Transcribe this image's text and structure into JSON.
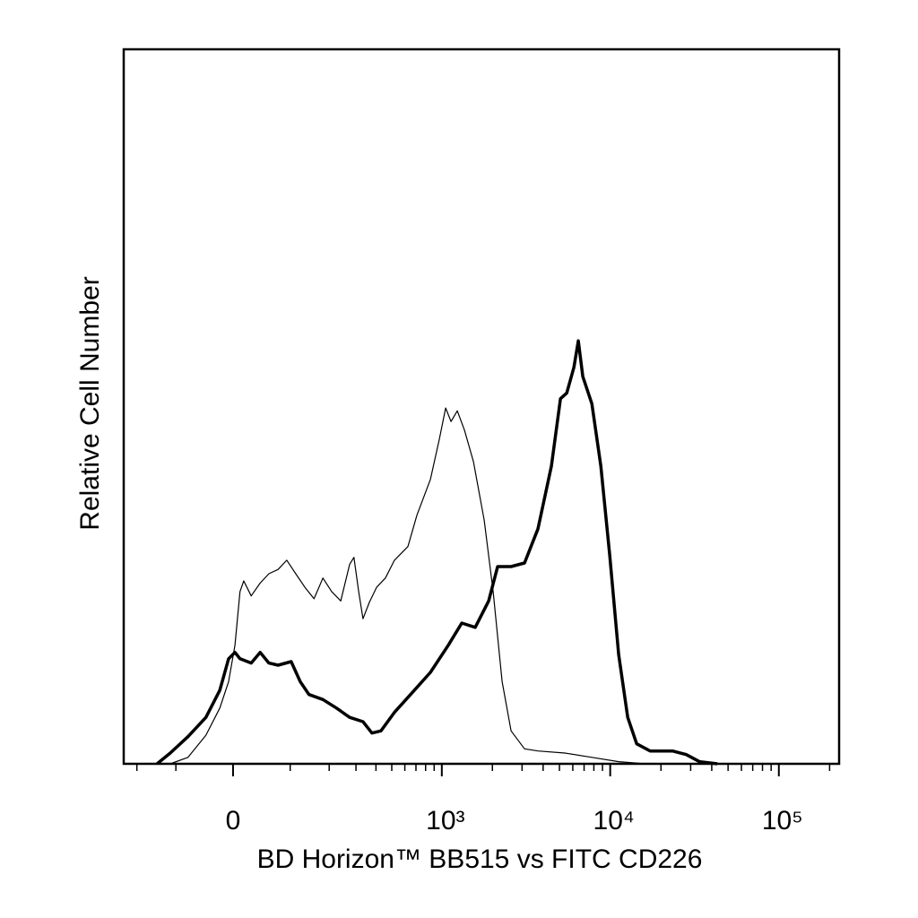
{
  "chart_data": {
    "type": "line",
    "xlabel": "BD Horizon™ BB515 vs FITC CD226",
    "ylabel": "Relative Cell Number",
    "xscale": "asinh",
    "xscale_cofactor": 116,
    "xlim": [
      -245,
      227700
    ],
    "ylim": [
      0,
      100
    ],
    "xticks": [
      0,
      {
        "value": 1000,
        "label": "10³"
      },
      {
        "value": 10000,
        "label": "10⁴"
      },
      {
        "value": 100000,
        "label": "10⁵"
      }
    ],
    "xminorticks": [
      -200,
      -100,
      100,
      200,
      300,
      400,
      500,
      600,
      700,
      800,
      900,
      2000,
      3000,
      4000,
      5000,
      6000,
      7000,
      8000,
      9000,
      20000,
      30000,
      40000,
      50000,
      60000,
      70000,
      80000,
      90000,
      200000
    ],
    "series": [
      {
        "color": "#000000",
        "linewidth": 3.5,
        "x": [
          -143,
          -112,
          -76,
          -44,
          -21,
          -7,
          3,
          11,
          29,
          44,
          59,
          76,
          102,
          122,
          143,
          181,
          224,
          273,
          332,
          378,
          429,
          519,
          667,
          855,
          1094,
          1315,
          1581,
          1901,
          2148,
          2583,
          3103,
          3728,
          4483,
          5069,
          5522,
          6090,
          6473,
          6879,
          7784,
          8793,
          9941,
          11229,
          12702,
          14349,
          17249,
          23420,
          28142,
          33814,
          43187
        ],
        "values": [
          0,
          1.5,
          3.8,
          6.5,
          10.3,
          14.7,
          15.6,
          14.7,
          14.1,
          15.6,
          14.1,
          13.8,
          14.3,
          11.5,
          9.7,
          9.0,
          7.8,
          6.5,
          5.9,
          4.3,
          4.6,
          7.2,
          10.0,
          12.8,
          16.6,
          19.7,
          19.1,
          22.8,
          27.6,
          27.6,
          28.1,
          32.9,
          41.7,
          51.1,
          51.9,
          55.5,
          59.2,
          54.2,
          50.4,
          41.7,
          29.1,
          15.3,
          6.5,
          2.8,
          1.8,
          1.8,
          1.3,
          0.3,
          0
        ]
      },
      {
        "color": "#000000",
        "linewidth": 1.2,
        "x": [
          -112,
          -76,
          -44,
          -21,
          -7,
          3,
          11,
          17,
          29,
          44,
          59,
          76,
          93,
          112,
          133,
          156,
          181,
          208,
          239,
          273,
          291,
          312,
          332,
          364,
          404,
          457,
          519,
          626,
          710,
          855,
          966,
          1054,
          1135,
          1237,
          1364,
          1543,
          1788,
          2021,
          2285,
          2583,
          3103,
          3728,
          5383,
          7784,
          11229,
          16228
        ],
        "values": [
          0,
          0.9,
          4.0,
          7.8,
          11.5,
          16.6,
          24.1,
          25.6,
          23.5,
          25.3,
          26.6,
          27.2,
          28.5,
          26.6,
          24.7,
          23.1,
          26.0,
          24.1,
          22.8,
          27.9,
          28.9,
          24.1,
          20.3,
          22.6,
          24.7,
          26.0,
          28.5,
          30.4,
          34.8,
          39.8,
          45.4,
          49.8,
          47.9,
          49.4,
          46.7,
          42.3,
          34.1,
          24.1,
          11.5,
          4.6,
          2.1,
          1.8,
          1.5,
          0.9,
          0.3,
          0
        ]
      }
    ]
  }
}
